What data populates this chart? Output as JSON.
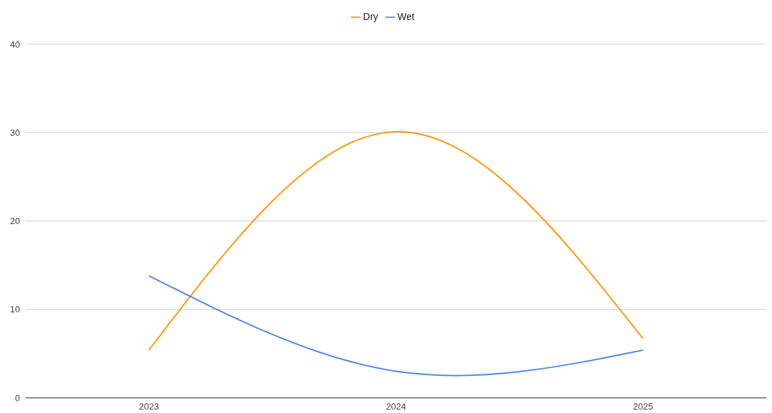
{
  "chart_data": {
    "type": "line",
    "categories": [
      "2023",
      "2024",
      "2025"
    ],
    "series": [
      {
        "name": "Dry",
        "color": "#ff9900",
        "values": [
          5.4,
          30.1,
          6.7
        ]
      },
      {
        "name": "Wet",
        "color": "#4a86e8",
        "values": [
          13.8,
          3.0,
          5.4
        ]
      }
    ],
    "ylim": [
      0,
      40
    ],
    "yticks": [
      0,
      10,
      20,
      30,
      40
    ],
    "grid": "y",
    "legend": "top",
    "marker": "none",
    "line_style": "solid"
  }
}
